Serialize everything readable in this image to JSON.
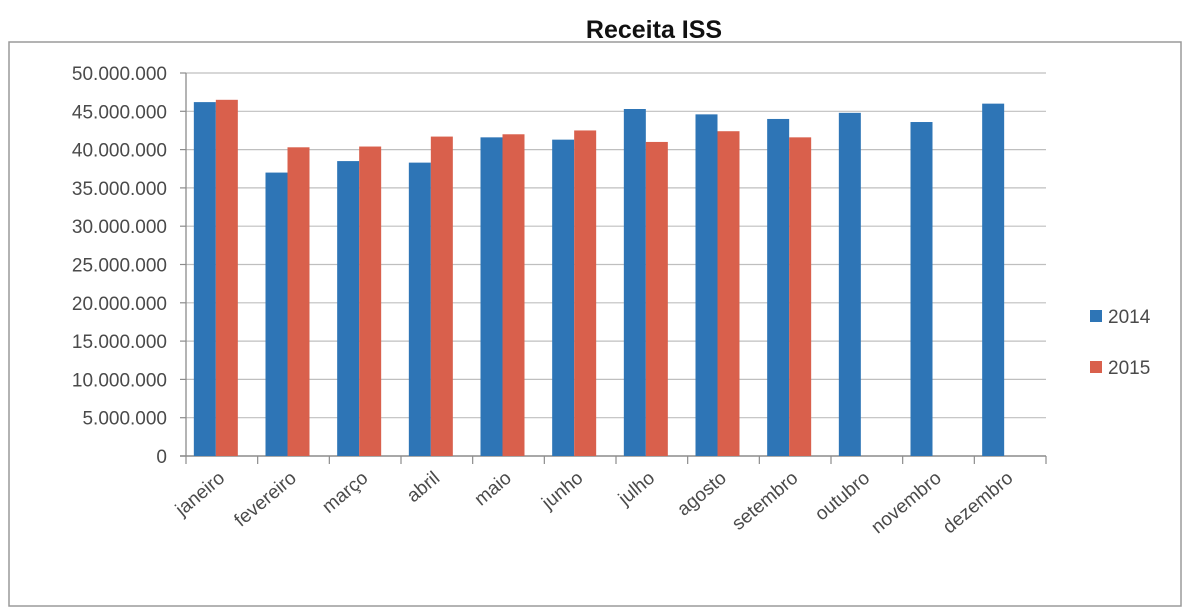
{
  "chart_data": {
    "type": "bar",
    "title": "Receita ISS",
    "xlabel": "",
    "ylabel": "",
    "ylim": [
      0,
      50000000
    ],
    "y_ticks": [
      0,
      5000000,
      10000000,
      15000000,
      20000000,
      25000000,
      30000000,
      35000000,
      40000000,
      45000000,
      50000000
    ],
    "y_tick_labels": [
      "0",
      "5.000.000",
      "10.000.000",
      "15.000.000",
      "20.000.000",
      "25.000.000",
      "30.000.000",
      "35.000.000",
      "40.000.000",
      "45.000.000",
      "50.000.000"
    ],
    "grid": true,
    "legend_position": "right",
    "categories": [
      "janeiro",
      "fevereiro",
      "março",
      "abril",
      "maio",
      "junho",
      "julho",
      "agosto",
      "setembro",
      "outubro",
      "novembro",
      "dezembro"
    ],
    "series": [
      {
        "name": "2014",
        "color": "#2e75b6",
        "values": [
          46200000,
          37000000,
          38500000,
          38300000,
          41600000,
          41300000,
          45300000,
          44600000,
          44000000,
          44800000,
          43600000,
          46000000
        ]
      },
      {
        "name": "2015",
        "color": "#d9604c",
        "values": [
          46500000,
          40300000,
          40400000,
          41700000,
          42000000,
          42500000,
          41000000,
          42400000,
          41600000,
          null,
          null,
          null
        ]
      }
    ]
  }
}
